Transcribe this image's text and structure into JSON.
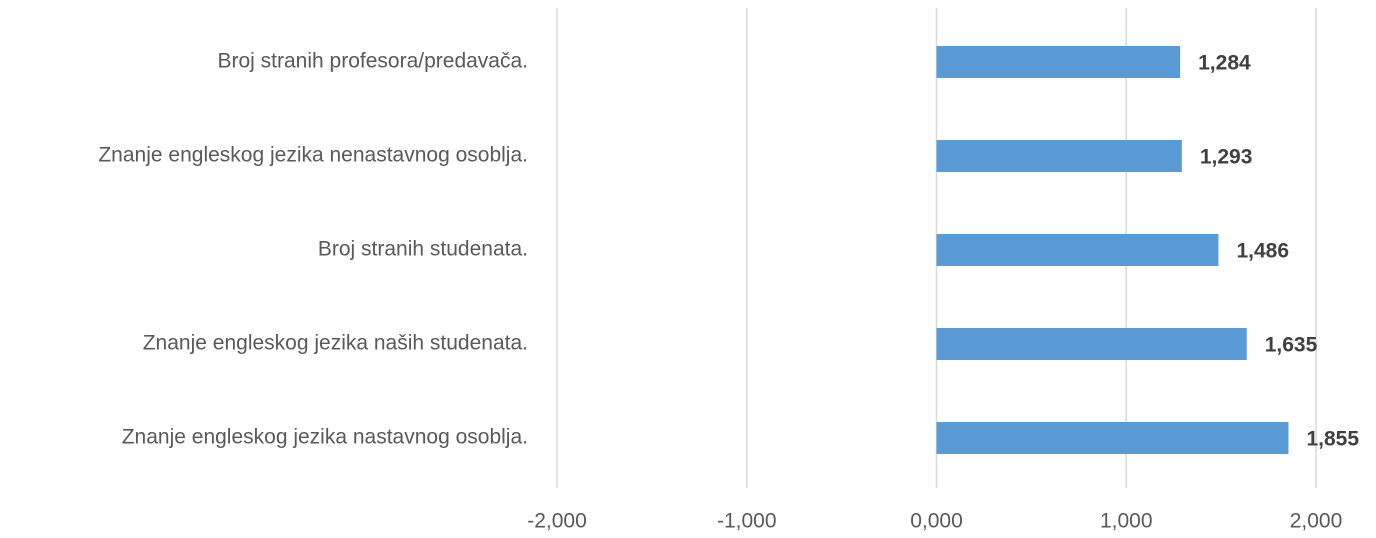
{
  "chart_data": {
    "type": "bar",
    "orientation": "horizontal",
    "categories": [
      "Broj stranih profesora/predavača.",
      "Znanje engleskog jezika nenastavnog osoblja.",
      "Broj stranih studenata.",
      "Znanje engleskog jezika naših studenata.",
      "Znanje engleskog jezika nastavnog osoblja."
    ],
    "values": [
      1.284,
      1.293,
      1.486,
      1.635,
      1.855
    ],
    "value_labels": [
      "1,284",
      "1,293",
      "1,486",
      "1,635",
      "1,855"
    ],
    "color": "#5b9bd5",
    "xlim": [
      -2,
      2
    ],
    "xticks": [
      {
        "value": -2,
        "label": "-2,000"
      },
      {
        "value": -1,
        "label": "-1,000"
      },
      {
        "value": 0,
        "label": "0,000"
      },
      {
        "value": 1,
        "label": "1,000"
      },
      {
        "value": 2,
        "label": "2,000"
      }
    ],
    "grid": true
  }
}
